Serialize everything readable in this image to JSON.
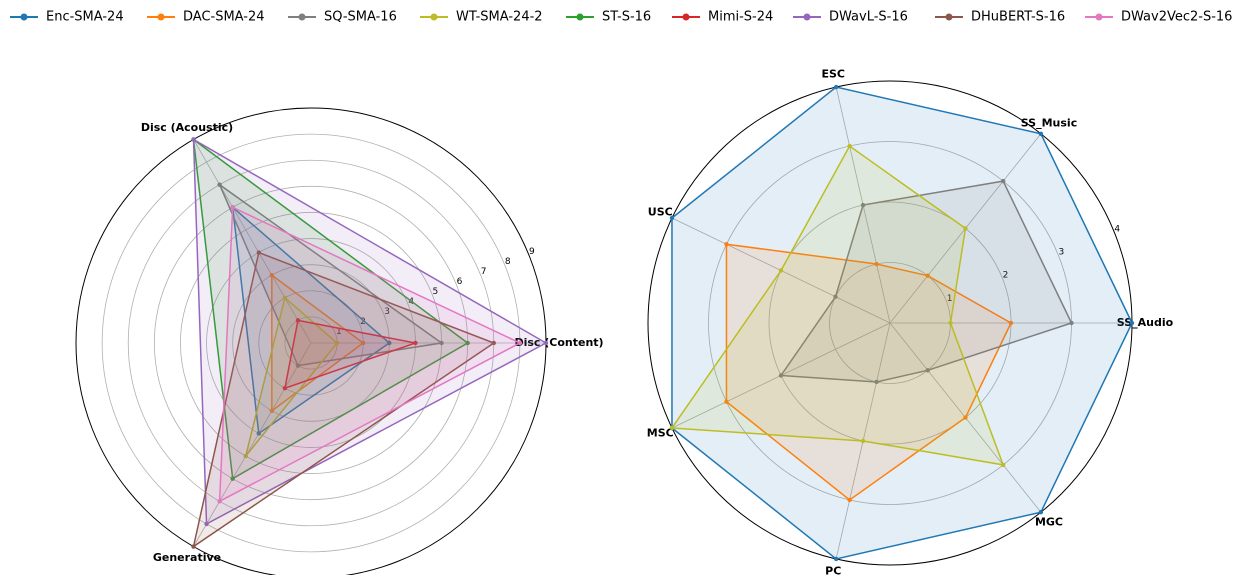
{
  "chart_data": [
    {
      "type": "radar",
      "categories": [
        "Disc (Content)",
        "Disc (Acoustic)",
        "Generative"
      ],
      "ylim": [
        0,
        9
      ],
      "yticks": [
        1,
        2,
        3,
        4,
        5,
        6,
        7,
        8,
        9
      ],
      "grid": true,
      "series": [
        {
          "name": "Enc-SMA-24",
          "color": "#1f77b4",
          "values": [
            3,
            6,
            4
          ]
        },
        {
          "name": "DAC-SMA-24",
          "color": "#ff7f0e",
          "values": [
            2,
            3,
            3
          ]
        },
        {
          "name": "SQ-SMA-16",
          "color": "#7f7f7f",
          "values": [
            5,
            7,
            1
          ]
        },
        {
          "name": "WT-SMA-24-2",
          "color": "#bcbd22",
          "values": [
            1,
            2,
            5
          ]
        },
        {
          "name": "ST-S-16",
          "color": "#2ca02c",
          "values": [
            6,
            9,
            6
          ]
        },
        {
          "name": "Mimi-S-24",
          "color": "#d62728",
          "values": [
            4,
            1,
            2
          ]
        },
        {
          "name": "DWavL-S-16",
          "color": "#9467bd",
          "values": [
            9,
            9,
            8
          ]
        },
        {
          "name": "DHuBERT-S-16",
          "color": "#8c564b",
          "values": [
            7,
            4,
            9
          ]
        },
        {
          "name": "DWav2Vec2-S-16",
          "color": "#e377c2",
          "values": [
            8,
            6,
            7
          ]
        }
      ]
    },
    {
      "type": "radar",
      "categories": [
        "SS_Audio",
        "SS_Music",
        "ESC",
        "USC",
        "MSC",
        "PC",
        "MGC"
      ],
      "ylim": [
        0,
        4
      ],
      "yticks": [
        1,
        2,
        3,
        4
      ],
      "grid": true,
      "series": [
        {
          "name": "Enc-SMA-24",
          "color": "#1f77b4",
          "values": [
            4,
            4,
            4,
            4,
            4,
            4,
            4
          ]
        },
        {
          "name": "DAC-SMA-24",
          "color": "#ff7f0e",
          "values": [
            2,
            1,
            1,
            3,
            3,
            3,
            2
          ]
        },
        {
          "name": "SQ-SMA-16",
          "color": "#7f7f7f",
          "values": [
            3,
            3,
            2,
            1,
            2,
            1,
            1
          ]
        },
        {
          "name": "WT-SMA-24-2",
          "color": "#bcbd22",
          "values": [
            1,
            2,
            3,
            2,
            4,
            2,
            3
          ]
        }
      ]
    }
  ]
}
